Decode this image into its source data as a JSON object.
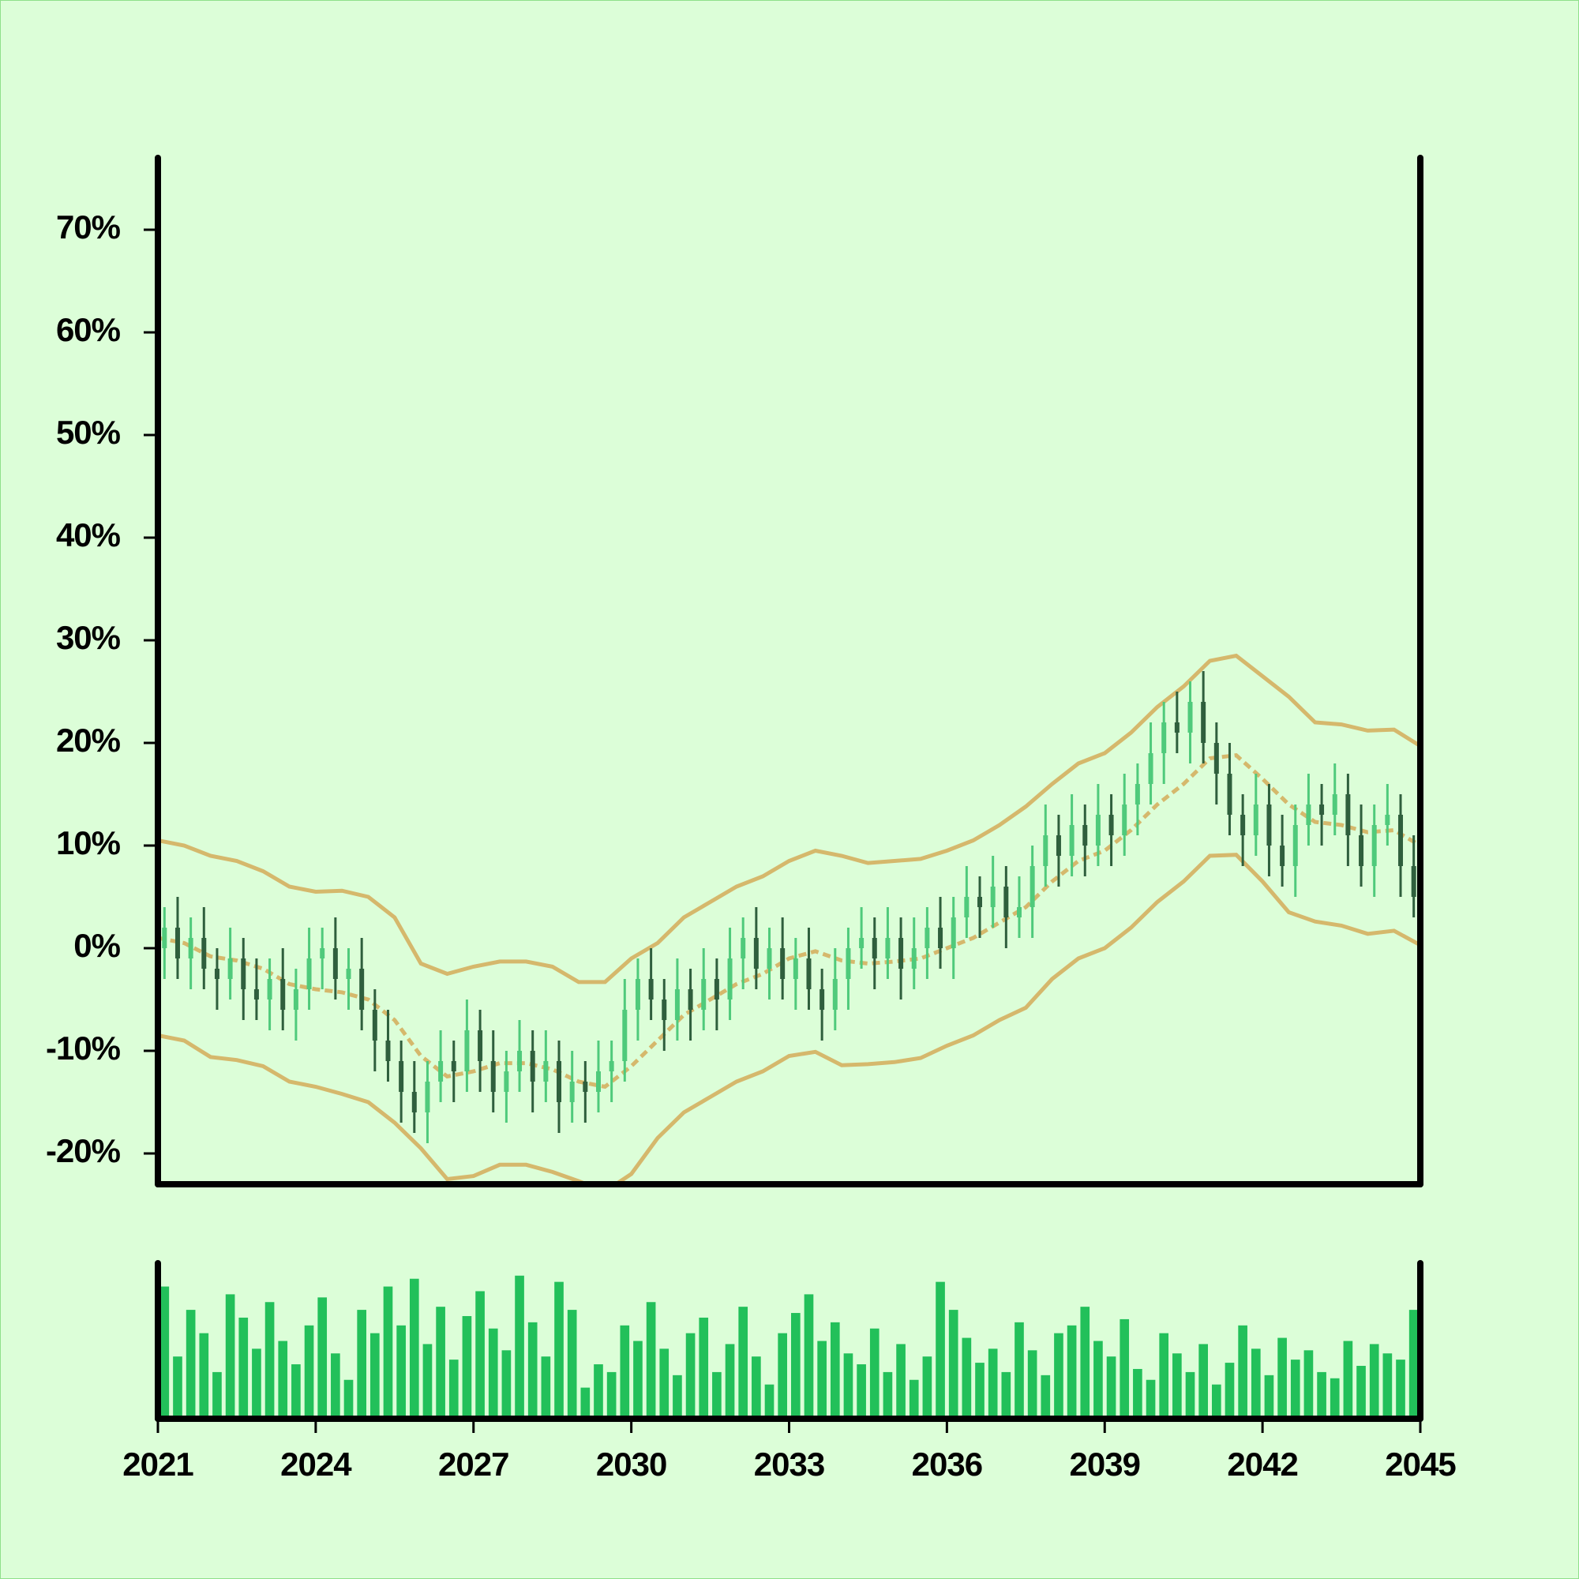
{
  "chart_data": {
    "type": "ohlc",
    "x": [
      2021.125,
      2021.375,
      2021.625,
      2021.875,
      2022.125,
      2022.375,
      2022.625,
      2022.875,
      2023.125,
      2023.375,
      2023.625,
      2023.875,
      2024.125,
      2024.375,
      2024.625,
      2024.875,
      2025.125,
      2025.375,
      2025.625,
      2025.875,
      2026.125,
      2026.375,
      2026.625,
      2026.875,
      2027.125,
      2027.375,
      2027.625,
      2027.875,
      2028.125,
      2028.375,
      2028.625,
      2028.875,
      2029.125,
      2029.375,
      2029.625,
      2029.875,
      2030.125,
      2030.375,
      2030.625,
      2030.875,
      2031.125,
      2031.375,
      2031.625,
      2031.875,
      2032.125,
      2032.375,
      2032.625,
      2032.875,
      2033.125,
      2033.375,
      2033.625,
      2033.875,
      2034.125,
      2034.375,
      2034.625,
      2034.875,
      2035.125,
      2035.375,
      2035.625,
      2035.875,
      2036.125,
      2036.375,
      2036.625,
      2036.875,
      2037.125,
      2037.375,
      2037.625,
      2037.875,
      2038.125,
      2038.375,
      2038.625,
      2038.875,
      2039.125,
      2039.375,
      2039.625,
      2039.875,
      2040.125,
      2040.375,
      2040.625,
      2040.875,
      2041.125,
      2041.375,
      2041.625,
      2041.875,
      2042.125,
      2042.375,
      2042.625,
      2042.875,
      2043.125,
      2043.375,
      2043.625,
      2043.875,
      2044.125,
      2044.375,
      2044.625,
      2044.875
    ],
    "open": [
      0,
      2,
      -1,
      1,
      -2,
      -3,
      -1,
      -4,
      -5,
      -3,
      -6,
      -4,
      -1,
      0,
      -3,
      -2,
      -6,
      -9,
      -11,
      -14,
      -16,
      -13,
      -11,
      -12,
      -8,
      -11,
      -14,
      -12,
      -10,
      -13,
      -11,
      -15,
      -13,
      -14,
      -12,
      -11,
      -6,
      -3,
      -5,
      -7,
      -4,
      -6,
      -3,
      -5,
      -1,
      1,
      -2,
      0,
      -3,
      -1,
      -4,
      -6,
      -3,
      0,
      1,
      -1,
      1,
      -2,
      0,
      2,
      0,
      3,
      5,
      4,
      6,
      3,
      4,
      8,
      11,
      9,
      12,
      10,
      13,
      11,
      14,
      16,
      19,
      22,
      21,
      24,
      20,
      17,
      13,
      11,
      14,
      10,
      8,
      12,
      14,
      13,
      15,
      11,
      8,
      12,
      13,
      8
    ],
    "high": [
      4,
      5,
      3,
      4,
      0,
      2,
      1,
      -1,
      -1,
      0,
      -2,
      2,
      2,
      3,
      0,
      1,
      -4,
      -6,
      -9,
      -11,
      -11,
      -8,
      -9,
      -5,
      -6,
      -8,
      -10,
      -7,
      -8,
      -8,
      -9,
      -10,
      -11,
      -9,
      -9,
      -3,
      -1,
      0,
      -3,
      -1,
      -2,
      0,
      -1,
      2,
      3,
      4,
      2,
      3,
      1,
      2,
      -2,
      0,
      2,
      4,
      3,
      4,
      3,
      3,
      4,
      5,
      5,
      8,
      7,
      9,
      8,
      7,
      10,
      14,
      13,
      15,
      14,
      16,
      15,
      17,
      18,
      22,
      24,
      25,
      26,
      27,
      22,
      20,
      15,
      17,
      16,
      13,
      14,
      17,
      16,
      18,
      17,
      14,
      14,
      16,
      15,
      11
    ],
    "low": [
      -3,
      -3,
      -4,
      -4,
      -6,
      -5,
      -7,
      -7,
      -8,
      -8,
      -9,
      -6,
      -4,
      -5,
      -6,
      -8,
      -12,
      -13,
      -17,
      -18,
      -19,
      -15,
      -15,
      -14,
      -14,
      -16,
      -17,
      -14,
      -16,
      -15,
      -18,
      -17,
      -17,
      -16,
      -15,
      -13,
      -9,
      -7,
      -10,
      -9,
      -9,
      -8,
      -8,
      -7,
      -4,
      -4,
      -5,
      -5,
      -6,
      -6,
      -9,
      -8,
      -6,
      -2,
      -4,
      -3,
      -5,
      -4,
      -3,
      -2,
      -3,
      1,
      1,
      2,
      0,
      1,
      1,
      6,
      6,
      7,
      7,
      8,
      8,
      9,
      11,
      14,
      16,
      19,
      18,
      18,
      14,
      11,
      8,
      9,
      7,
      6,
      5,
      10,
      10,
      11,
      8,
      6,
      5,
      10,
      5,
      3
    ],
    "close": [
      2,
      -1,
      1,
      -2,
      -3,
      -1,
      -4,
      -5,
      -3,
      -6,
      -4,
      -1,
      0,
      -3,
      -2,
      -6,
      -9,
      -11,
      -14,
      -16,
      -13,
      -11,
      -12,
      -8,
      -11,
      -14,
      -12,
      -10,
      -13,
      -11,
      -15,
      -13,
      -14,
      -12,
      -11,
      -6,
      -3,
      -5,
      -7,
      -4,
      -6,
      -3,
      -5,
      -1,
      1,
      -2,
      0,
      -3,
      -1,
      -4,
      -6,
      -3,
      0,
      1,
      -1,
      1,
      -2,
      0,
      2,
      0,
      3,
      5,
      4,
      6,
      3,
      4,
      8,
      11,
      9,
      12,
      10,
      13,
      11,
      14,
      16,
      19,
      22,
      21,
      24,
      20,
      17,
      13,
      11,
      14,
      10,
      8,
      12,
      14,
      13,
      15,
      11,
      8,
      12,
      13,
      8,
      5
    ],
    "up_color": "#4fca7b",
    "down_color": "#2f5f3d",
    "volume": [
      85,
      40,
      70,
      55,
      30,
      80,
      65,
      45,
      75,
      50,
      35,
      60,
      78,
      42,
      25,
      70,
      55,
      85,
      60,
      90,
      48,
      72,
      38,
      66,
      82,
      58,
      44,
      92,
      62,
      40,
      88,
      70,
      20,
      35,
      30,
      60,
      50,
      75,
      45,
      28,
      55,
      65,
      30,
      48,
      72,
      40,
      22,
      55,
      68,
      80,
      50,
      62,
      42,
      35,
      58,
      30,
      48,
      25,
      40,
      88,
      70,
      52,
      36,
      45,
      30,
      62,
      44,
      28,
      55,
      60,
      72,
      50,
      40,
      64,
      32,
      25,
      55,
      42,
      30,
      48,
      22,
      36,
      60,
      45,
      28,
      52,
      38,
      44,
      30,
      26,
      50,
      34,
      48,
      42,
      38,
      70
    ],
    "volume_color": "#22c05a",
    "volume_ylim": [
      0,
      100
    ],
    "bands": {
      "color": "#d5b86c",
      "x": [
        2021,
        2021.5,
        2022,
        2022.5,
        2023,
        2023.5,
        2024,
        2024.5,
        2025,
        2025.5,
        2026,
        2026.5,
        2027,
        2027.5,
        2028,
        2028.5,
        2029,
        2029.5,
        2030,
        2030.5,
        2031,
        2031.5,
        2032,
        2032.5,
        2033,
        2033.5,
        2034,
        2034.5,
        2035,
        2035.5,
        2036,
        2036.5,
        2037,
        2037.5,
        2038,
        2038.5,
        2039,
        2039.5,
        2040,
        2040.5,
        2041,
        2041.5,
        2042,
        2042.5,
        2043,
        2043.5,
        2044,
        2044.5,
        2045
      ],
      "upper": [
        10.5,
        10,
        9,
        8.5,
        7.5,
        6,
        5.5,
        5.6,
        5,
        3,
        -1.5,
        -2.5,
        -1.8,
        -1.3,
        -1.3,
        -1.8,
        -3.3,
        -3.3,
        -1,
        0.5,
        3,
        4.5,
        6,
        7,
        8.5,
        9.5,
        9,
        8.3,
        8.5,
        8.7,
        9.5,
        10.5,
        12,
        13.8,
        16,
        18,
        19,
        21,
        23.5,
        25.5,
        28,
        28.5,
        26.5,
        24.5,
        22,
        21.8,
        21.2,
        21.3,
        19.7
      ],
      "middle": [
        1,
        0.5,
        -0.8,
        -1.2,
        -2,
        -3.5,
        -4,
        -4.3,
        -5,
        -7,
        -10.5,
        -12.5,
        -12,
        -11.2,
        -11.2,
        -11.8,
        -13,
        -13.5,
        -11.5,
        -9,
        -6.5,
        -5,
        -3.5,
        -2.5,
        -1,
        -0.3,
        -1.2,
        -1.5,
        -1.3,
        -1,
        0,
        1,
        2.5,
        4,
        6.5,
        8.5,
        9.5,
        11.5,
        14,
        16,
        18.5,
        18.8,
        16.5,
        14,
        12.3,
        12,
        11.3,
        11.5,
        10
      ],
      "lower": [
        -8.5,
        -9,
        -10.6,
        -10.9,
        -11.5,
        -13,
        -13.5,
        -14.2,
        -15,
        -17,
        -19.5,
        -22.5,
        -22.2,
        -21.1,
        -21.1,
        -21.8,
        -22.7,
        -23.7,
        -22,
        -18.5,
        -16,
        -14.5,
        -13,
        -12,
        -10.5,
        -10.1,
        -11.4,
        -11.3,
        -11.1,
        -10.7,
        -9.5,
        -8.5,
        -7,
        -5.8,
        -3,
        -1,
        0,
        2,
        4.5,
        6.5,
        9,
        9.1,
        6.5,
        3.5,
        2.6,
        2.2,
        1.4,
        1.7,
        0.3
      ]
    },
    "xlim": [
      2021,
      2045
    ],
    "xticks": [
      2021,
      2024,
      2027,
      2030,
      2033,
      2036,
      2039,
      2042,
      2045
    ],
    "ylim": [
      -23,
      77
    ],
    "yticks": [
      {
        "value": -20,
        "label": "-20%"
      },
      {
        "value": -10,
        "label": "-10%"
      },
      {
        "value": 0,
        "label": "0%"
      },
      {
        "value": 10,
        "label": "10%"
      },
      {
        "value": 20,
        "label": "20%"
      },
      {
        "value": 30,
        "label": "30%"
      },
      {
        "value": 40,
        "label": "40%"
      },
      {
        "value": 50,
        "label": "50%"
      },
      {
        "value": 60,
        "label": "60%"
      },
      {
        "value": 70,
        "label": "70%"
      }
    ]
  }
}
